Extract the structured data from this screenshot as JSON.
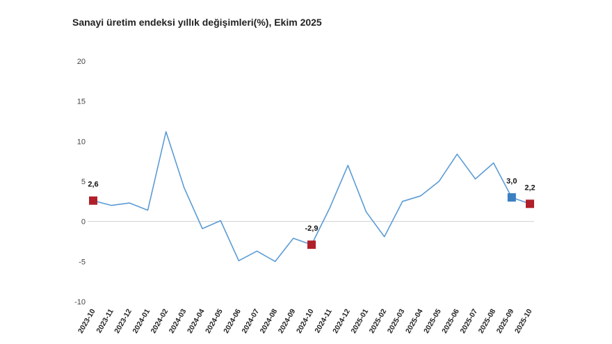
{
  "chart_data": {
    "type": "line",
    "title": "Sanayi üretim endeksi yıllık değişimleri(%), Ekim 2025",
    "xlabel": "",
    "ylabel": "",
    "ylim": [
      -10,
      20
    ],
    "yticks": [
      -10,
      -5,
      0,
      5,
      10,
      15,
      20
    ],
    "grid": false,
    "x": [
      "2023-10",
      "2023-11",
      "2023-12",
      "2024-01",
      "2024-02",
      "2024-03",
      "2024-04",
      "2024-05",
      "2024-06",
      "2024-07",
      "2024-08",
      "2024-09",
      "2024-10",
      "2024-11",
      "2024-12",
      "2025-01",
      "2025-02",
      "2025-03",
      "2025-04",
      "2025-05",
      "2025-06",
      "2025-07",
      "2025-08",
      "2025-09",
      "2025-10"
    ],
    "series": [
      {
        "values": [
          2.6,
          2.0,
          2.3,
          1.4,
          11.2,
          4.2,
          -0.9,
          0.1,
          -4.9,
          -3.7,
          -5.0,
          -2.1,
          -2.9,
          1.7,
          7.0,
          1.2,
          -1.9,
          2.5,
          3.2,
          5.0,
          8.4,
          5.3,
          7.3,
          3.0,
          2.2
        ],
        "color": "#5b9bd5"
      }
    ],
    "highlights": [
      {
        "x": "2023-10",
        "value": 2.6,
        "label": "2,6",
        "color": "#b0202a"
      },
      {
        "x": "2024-10",
        "value": -2.9,
        "label": "-2,9",
        "color": "#b0202a"
      },
      {
        "x": "2025-09",
        "value": 3.0,
        "label": "3,0",
        "color": "#3a7fc2"
      },
      {
        "x": "2025-10",
        "value": 2.2,
        "label": "2,2",
        "color": "#b0202a"
      }
    ]
  }
}
